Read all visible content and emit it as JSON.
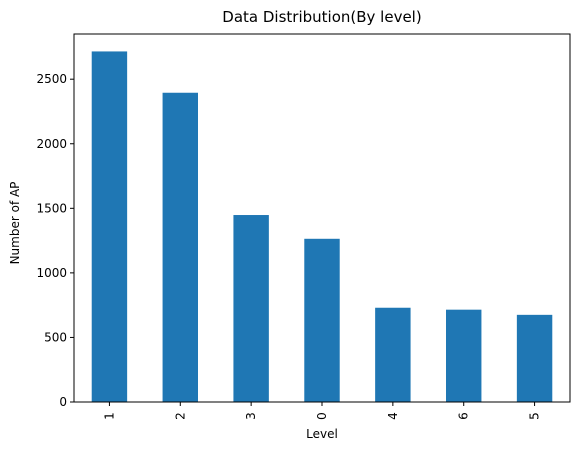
{
  "chart_data": {
    "type": "bar",
    "title": "Data Distribution(By level)",
    "xlabel": "Level",
    "ylabel": "Number of AP",
    "categories": [
      "1",
      "2",
      "3",
      "0",
      "4",
      "6",
      "5"
    ],
    "values": [
      2715,
      2395,
      1448,
      1264,
      730,
      715,
      675
    ],
    "ylim": [
      0,
      2850
    ],
    "yticks": [
      0,
      500,
      1000,
      1500,
      2000,
      2500
    ],
    "bar_color": "#1f77b4",
    "grid": false,
    "legend": "none"
  }
}
